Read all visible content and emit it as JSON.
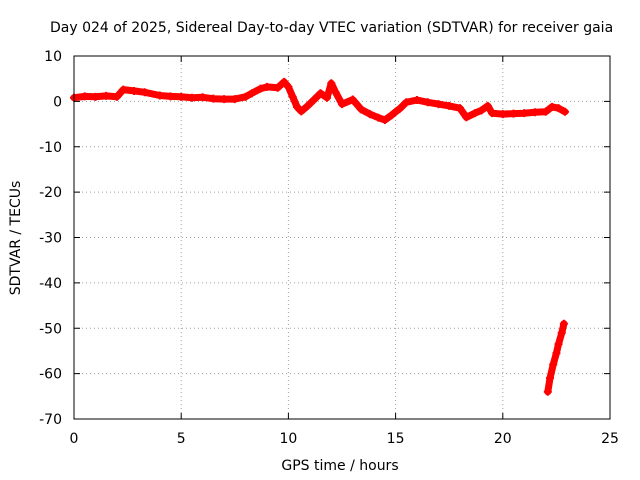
{
  "chart_data": {
    "type": "scatter",
    "title": "Day 024 of 2025, Sidereal Day-to-day VTEC variation (SDTVAR) for receiver gaia",
    "xlabel": "GPS time / hours",
    "ylabel": "SDTVAR / TECUs",
    "xlim": [
      0,
      25
    ],
    "ylim": [
      -70,
      10
    ],
    "xticks": [
      0,
      5,
      10,
      15,
      20,
      25
    ],
    "yticks": [
      -70,
      -60,
      -50,
      -40,
      -30,
      -20,
      -10,
      0,
      10
    ],
    "grid": true,
    "series": [
      {
        "name": "SDTVAR",
        "color": "#ff0000",
        "marker": "plus",
        "segments": [
          [
            [
              0.0,
              0.8
            ],
            [
              0.5,
              1.1
            ],
            [
              1.0,
              1.0
            ],
            [
              1.5,
              1.2
            ],
            [
              2.0,
              1.0
            ],
            [
              2.3,
              2.6
            ],
            [
              2.8,
              2.3
            ],
            [
              3.3,
              2.0
            ],
            [
              4.0,
              1.3
            ],
            [
              4.5,
              1.1
            ],
            [
              5.0,
              1.0
            ],
            [
              5.5,
              0.8
            ],
            [
              6.0,
              0.9
            ],
            [
              6.5,
              0.6
            ],
            [
              7.0,
              0.5
            ],
            [
              7.5,
              0.5
            ],
            [
              8.0,
              1.0
            ],
            [
              8.3,
              1.8
            ],
            [
              8.7,
              2.8
            ],
            [
              9.0,
              3.2
            ],
            [
              9.5,
              3.0
            ],
            [
              9.8,
              4.3
            ],
            [
              10.0,
              3.2
            ],
            [
              10.2,
              1.0
            ],
            [
              10.4,
              -1.2
            ],
            [
              10.6,
              -2.2
            ],
            [
              10.9,
              -1.0
            ],
            [
              11.2,
              0.4
            ],
            [
              11.5,
              1.8
            ],
            [
              11.8,
              0.8
            ],
            [
              12.0,
              4.0
            ],
            [
              12.2,
              2.0
            ],
            [
              12.5,
              -0.6
            ],
            [
              13.0,
              0.4
            ],
            [
              13.4,
              -1.8
            ],
            [
              13.8,
              -2.8
            ],
            [
              14.2,
              -3.6
            ],
            [
              14.5,
              -4.1
            ],
            [
              14.8,
              -3.1
            ],
            [
              15.0,
              -2.3
            ],
            [
              15.2,
              -1.6
            ],
            [
              15.5,
              -0.2
            ],
            [
              16.0,
              0.3
            ],
            [
              16.5,
              -0.2
            ],
            [
              17.0,
              -0.6
            ],
            [
              17.5,
              -1.0
            ],
            [
              18.0,
              -1.5
            ],
            [
              18.3,
              -3.5
            ],
            [
              18.7,
              -2.6
            ],
            [
              19.0,
              -2.0
            ],
            [
              19.3,
              -1.0
            ],
            [
              19.5,
              -2.6
            ],
            [
              20.0,
              -2.8
            ],
            [
              20.5,
              -2.7
            ],
            [
              21.0,
              -2.6
            ],
            [
              21.5,
              -2.4
            ],
            [
              22.0,
              -2.3
            ],
            [
              22.3,
              -1.2
            ],
            [
              22.6,
              -1.5
            ],
            [
              22.9,
              -2.3
            ]
          ],
          [
            [
              22.1,
              -64.0
            ],
            [
              22.2,
              -61.0
            ],
            [
              22.35,
              -58.0
            ],
            [
              22.5,
              -55.5
            ],
            [
              22.6,
              -53.5
            ],
            [
              22.75,
              -51.0
            ],
            [
              22.85,
              -49.0
            ]
          ]
        ]
      }
    ]
  }
}
